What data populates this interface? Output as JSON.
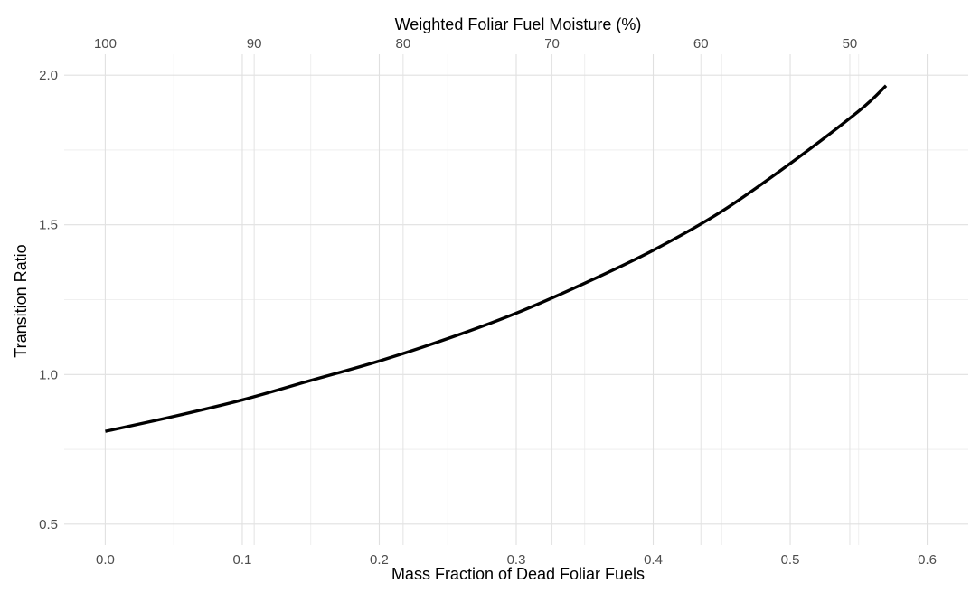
{
  "chart_data": {
    "type": "line",
    "title": "",
    "xlabel": "Mass Fraction of Dead Foliar Fuels",
    "ylabel": "Transition Ratio",
    "top_xlabel": "Weighted Foliar Fuel Moisture (%)",
    "xlim": [
      -0.03,
      0.63
    ],
    "ylim": [
      0.43,
      2.07
    ],
    "grid": true,
    "x_ticks": [
      0.0,
      0.1,
      0.2,
      0.3,
      0.4,
      0.5,
      0.6
    ],
    "x_tick_labels": [
      "0.0",
      "0.1",
      "0.2",
      "0.3",
      "0.4",
      "0.5",
      "0.6"
    ],
    "y_ticks": [
      0.5,
      1.0,
      1.5,
      2.0
    ],
    "y_tick_labels": [
      "0.5",
      "1.0",
      "1.5",
      "2.0"
    ],
    "top_ticks": [
      {
        "x": 0.0,
        "label": "100"
      },
      {
        "x": 0.1087,
        "label": "90"
      },
      {
        "x": 0.2174,
        "label": "80"
      },
      {
        "x": 0.3261,
        "label": "70"
      },
      {
        "x": 0.4348,
        "label": "60"
      },
      {
        "x": 0.5435,
        "label": "50"
      }
    ],
    "series": [
      {
        "color": "#000000",
        "x": [
          0.0,
          0.05,
          0.1,
          0.15,
          0.2,
          0.25,
          0.3,
          0.35,
          0.4,
          0.45,
          0.5,
          0.55,
          0.57
        ],
        "y": [
          0.81,
          0.86,
          0.915,
          0.98,
          1.045,
          1.12,
          1.205,
          1.305,
          1.415,
          1.545,
          1.705,
          1.88,
          1.965
        ]
      }
    ]
  }
}
